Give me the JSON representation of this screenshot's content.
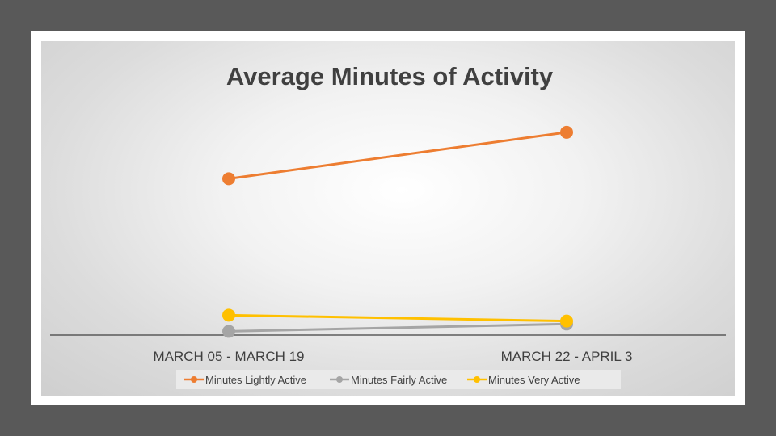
{
  "chart_data": {
    "type": "line",
    "title": "Average Minutes of Activity",
    "xlabel": "",
    "ylabel": "",
    "categories": [
      "MARCH 05 - MARCH 19",
      "MARCH 22 - APRIL 3"
    ],
    "ylim": [
      0,
      300
    ],
    "grid": false,
    "legend_position": "bottom",
    "series": [
      {
        "name": "Minutes Lightly Active",
        "color": "#ED7D31",
        "values": [
          212,
          275
        ]
      },
      {
        "name": "Minutes Fairly Active",
        "color": "#A5A5A5",
        "values": [
          5,
          15
        ]
      },
      {
        "name": "Minutes Very Active",
        "color": "#FFC000",
        "values": [
          27,
          19
        ]
      }
    ]
  }
}
